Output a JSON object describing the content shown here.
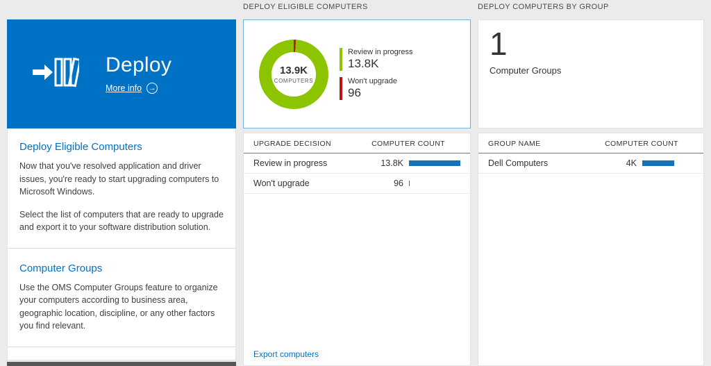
{
  "colors": {
    "tile_blue": "#0072c6",
    "bar_blue": "#1373bd",
    "donut_green": "#8cc400",
    "donut_red": "#ba141a"
  },
  "left_tile": {
    "title": "Deploy",
    "more_info_label": "More info",
    "more_info_arrow": "→",
    "icon": "deploy-books-arrow"
  },
  "left_panel": {
    "sections": [
      {
        "heading": "Deploy Eligible Computers",
        "paragraphs": [
          "Now that you've resolved application and driver issues, you're ready to start upgrading computers to Microsoft Windows.",
          "Select the list of computers that are ready to upgrade and export it to your software distribution solution."
        ]
      },
      {
        "heading": "Computer Groups",
        "paragraphs": [
          "Use the OMS Computer Groups feature to organize your computers according to business area, geographic location, discipline, or any other factors you find relevant."
        ]
      }
    ]
  },
  "middle": {
    "header": "DEPLOY ELIGIBLE COMPUTERS",
    "donut": {
      "center_value": "13.9K",
      "center_label": "COMPUTERS",
      "green_color": "#8cc400",
      "red_color": "#ba141a",
      "red_pct": 1,
      "legend": [
        {
          "label": "Review in progress",
          "value": "13.8K",
          "color": "#8cc400"
        },
        {
          "label": "Won't upgrade",
          "value": "96",
          "color": "#ba141a"
        }
      ]
    },
    "table": {
      "columns": [
        "UPGRADE DECISION",
        "COMPUTER COUNT"
      ],
      "rows": [
        {
          "label": "Review in progress",
          "value": "13.8K",
          "bar_pct": 100
        },
        {
          "label": "Won't upgrade",
          "value": "96",
          "bar_pct": 2
        }
      ]
    },
    "export_link": "Export computers"
  },
  "right": {
    "header": "DEPLOY COMPUTERS BY GROUP",
    "summary": {
      "value": "1",
      "label": "Computer Groups"
    },
    "table": {
      "columns": [
        "GROUP NAME",
        "COMPUTER COUNT"
      ],
      "rows": [
        {
          "label": "Dell Computers",
          "value": "4K",
          "bar_pct": 62
        }
      ]
    }
  }
}
